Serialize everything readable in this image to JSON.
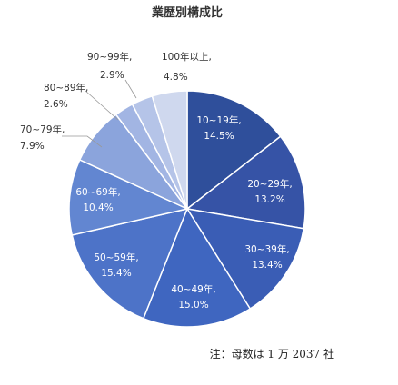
{
  "chart_data": {
    "type": "pie",
    "title": "業歴別構成比",
    "start_angle_deg": 0,
    "direction": "clockwise",
    "slices": [
      {
        "label": "10~19年,",
        "value": 14.5,
        "value_text": "14.5%",
        "color": "#2f4f9b",
        "label_pos": "inside"
      },
      {
        "label": "20~29年,",
        "value": 13.2,
        "value_text": "13.2%",
        "color": "#3653a6",
        "label_pos": "inside"
      },
      {
        "label": "30~39年,",
        "value": 13.4,
        "value_text": "13.4%",
        "color": "#3a5db5",
        "label_pos": "inside"
      },
      {
        "label": "40~49年,",
        "value": 15.0,
        "value_text": "15.0%",
        "color": "#3f66c0",
        "label_pos": "inside"
      },
      {
        "label": "50~59年,",
        "value": 15.4,
        "value_text": "15.4%",
        "color": "#4d73c8",
        "label_pos": "inside"
      },
      {
        "label": "60~69年,",
        "value": 10.4,
        "value_text": "10.4%",
        "color": "#6286d1",
        "label_pos": "inside"
      },
      {
        "label": "70~79年,",
        "value": 7.9,
        "value_text": "7.9%",
        "color": "#8ba4dc",
        "label_pos": "outside"
      },
      {
        "label": "80~89年,",
        "value": 2.6,
        "value_text": "2.6%",
        "color": "#a2b5e3",
        "label_pos": "outside"
      },
      {
        "label": "90~99年,",
        "value": 2.9,
        "value_text": "2.9%",
        "color": "#b5c4e8",
        "label_pos": "outside"
      },
      {
        "label": "100年以上,",
        "value": 4.8,
        "value_text": "4.8%",
        "color": "#cfd8ee",
        "label_pos": "outside"
      }
    ],
    "legend": "none"
  },
  "note": "注：母数は 1 万 2037 社"
}
